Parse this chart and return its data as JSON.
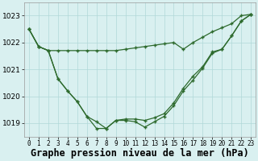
{
  "hours": [
    0,
    1,
    2,
    3,
    4,
    5,
    6,
    7,
    8,
    9,
    10,
    11,
    12,
    13,
    14,
    15,
    16,
    17,
    18,
    19,
    20,
    21,
    22,
    23
  ],
  "line_flat": [
    1022.5,
    1021.85,
    1021.7,
    1021.7,
    1021.7,
    1021.7,
    1021.7,
    1021.7,
    1021.7,
    1021.7,
    1021.75,
    1021.8,
    1021.85,
    1021.9,
    1021.95,
    1022.0,
    1021.75,
    1022.0,
    1022.2,
    1022.4,
    1022.55,
    1022.7,
    1023.0,
    1023.05
  ],
  "line_deep1": [
    1022.5,
    1021.85,
    1021.7,
    1020.65,
    1020.2,
    1019.8,
    1019.25,
    1018.8,
    1018.8,
    1019.1,
    1019.1,
    1019.05,
    1018.85,
    1019.05,
    1019.25,
    1019.65,
    1020.2,
    1020.6,
    1021.05,
    1021.6,
    1021.75,
    1022.25,
    1022.8,
    1023.05
  ],
  "line_deep2": [
    1022.5,
    1021.85,
    1021.7,
    1020.65,
    1020.2,
    1019.8,
    1019.25,
    1019.05,
    1018.8,
    1019.1,
    1019.15,
    1019.15,
    1019.1,
    1019.2,
    1019.35,
    1019.75,
    1020.3,
    1020.75,
    1021.1,
    1021.65,
    1021.75,
    1022.25,
    1022.8,
    1023.05
  ],
  "line_color": "#2d6a2d",
  "bg_color": "#d9f0f0",
  "grid_color": "#b0d8d8",
  "xlabel": "Graphe pression niveau de la mer (hPa)",
  "ylim": [
    1018.5,
    1023.5
  ],
  "yticks": [
    1019,
    1020,
    1021,
    1022,
    1023
  ],
  "xlim": [
    -0.5,
    23.5
  ]
}
